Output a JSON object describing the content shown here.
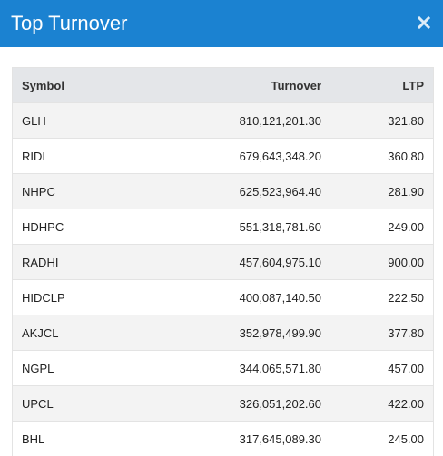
{
  "header": {
    "title": "Top Turnover"
  },
  "table": {
    "columns": [
      "Symbol",
      "Turnover",
      "LTP"
    ],
    "rows": [
      [
        "GLH",
        "810,121,201.30",
        "321.80"
      ],
      [
        "RIDI",
        "679,643,348.20",
        "360.80"
      ],
      [
        "NHPC",
        "625,523,964.40",
        "281.90"
      ],
      [
        "HDHPC",
        "551,318,781.60",
        "249.00"
      ],
      [
        "RADHI",
        "457,604,975.10",
        "900.00"
      ],
      [
        "HIDCLP",
        "400,087,140.50",
        "222.50"
      ],
      [
        "AKJCL",
        "352,978,499.90",
        "377.80"
      ],
      [
        "NGPL",
        "344,065,571.80",
        "457.00"
      ],
      [
        "UPCL",
        "326,051,202.60",
        "422.00"
      ],
      [
        "BHL",
        "317,645,089.30",
        "245.00"
      ]
    ]
  },
  "colors": {
    "header_bg": "#1b82d1",
    "header_row_bg": "#e4e6e9",
    "stripe_bg": "#f3f3f3"
  }
}
